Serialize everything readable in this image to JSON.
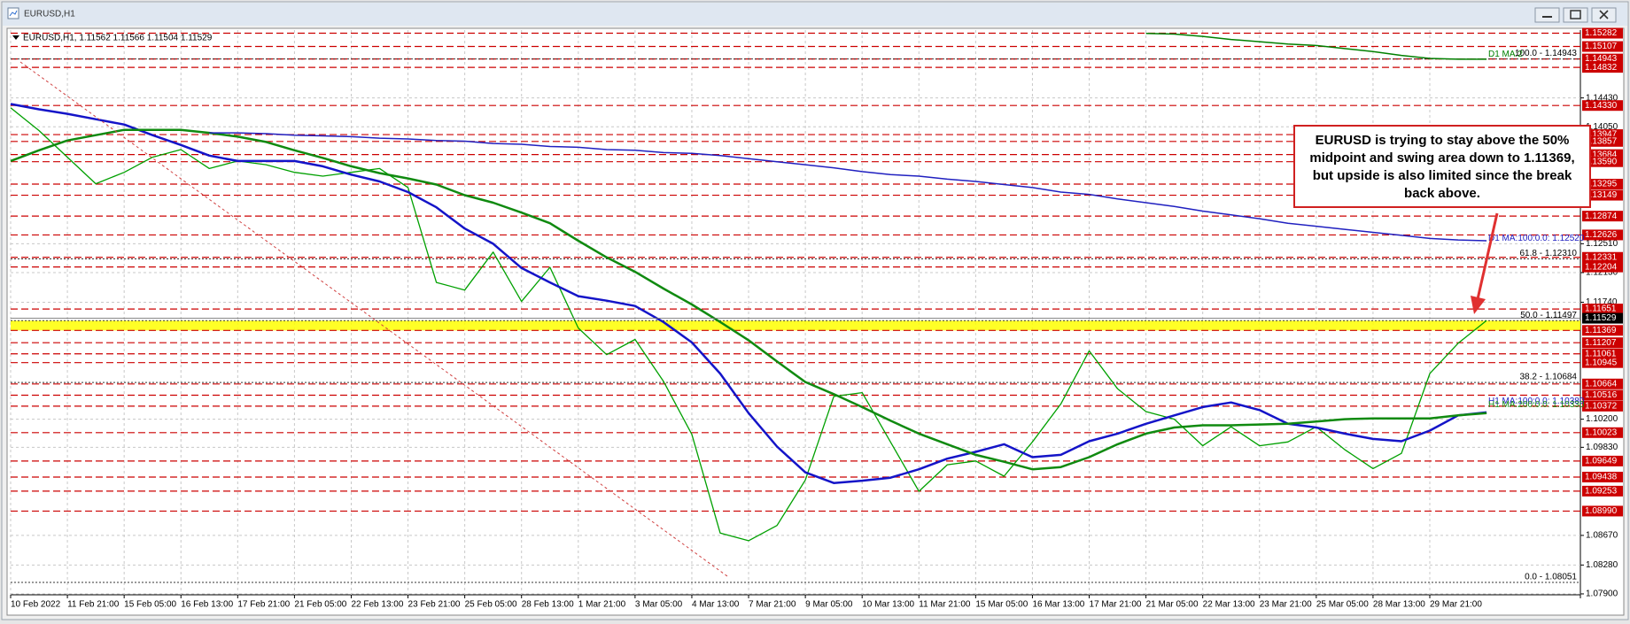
{
  "chart_data": {
    "type": "line",
    "title": "EURUSD,H1",
    "header": "EURUSD,H1, 1.11562 1.11566 1.11504 1.11529",
    "categories": [
      "10 Feb 2022",
      null,
      "11 Feb 21:00",
      null,
      "15 Feb 05:00",
      null,
      "16 Feb 13:00",
      null,
      "17 Feb 21:00",
      null,
      "21 Feb 05:00",
      null,
      "22 Feb 13:00",
      null,
      "23 Feb 21:00",
      null,
      "25 Feb 05:00",
      null,
      "28 Feb 13:00",
      null,
      "1 Mar 21:00",
      null,
      "3 Mar 05:00",
      null,
      "4 Mar 13:00",
      null,
      "7 Mar 21:00",
      null,
      "9 Mar 05:00",
      null,
      "10 Mar 13:00",
      null,
      "11 Mar 21:00",
      null,
      "15 Mar 05:00",
      null,
      "16 Mar 13:00",
      null,
      "17 Mar 21:00",
      null,
      "21 Mar 05:00",
      null,
      "22 Mar 13:00",
      null,
      "23 Mar 21:00",
      null,
      "25 Mar 05:00",
      null,
      "28 Mar 13:00",
      null,
      "29 Mar 21:00",
      null,
      null
    ],
    "series": [
      {
        "color": "#00a000",
        "width": 1.3,
        "values": [
          1.143,
          1.14,
          1.1365,
          1.133,
          1.1345,
          1.1365,
          1.1375,
          1.135,
          1.136,
          1.1355,
          1.1345,
          1.134,
          1.1345,
          1.135,
          1.1325,
          1.12,
          1.119,
          1.124,
          1.1175,
          1.122,
          1.114,
          1.1105,
          1.1125,
          1.107,
          1.1,
          1.087,
          1.086,
          1.088,
          1.094,
          1.105,
          1.1055,
          1.099,
          1.0925,
          1.096,
          1.0965,
          1.0945,
          1.099,
          1.104,
          1.111,
          1.106,
          1.103,
          1.102,
          1.0985,
          1.101,
          1.0985,
          1.099,
          1.101,
          1.098,
          1.0955,
          1.0975,
          1.108,
          1.112,
          1.115
        ]
      },
      {
        "color": "#1414c8",
        "width": 2.5,
        "values": [
          1.1435,
          1.1428,
          1.1422,
          1.1415,
          1.1408,
          1.1394,
          1.1381,
          1.1367,
          1.136,
          1.136,
          1.136,
          1.1353,
          1.1342,
          1.1333,
          1.1319,
          1.1299,
          1.1271,
          1.1251,
          1.1219,
          1.12,
          1.1182,
          1.1176,
          1.1169,
          1.1148,
          1.1121,
          1.108,
          1.1028,
          1.0984,
          1.095,
          1.0936,
          1.0939,
          1.0943,
          1.0954,
          1.0968,
          1.0977,
          1.0987,
          1.097,
          1.0973,
          1.0991,
          1.1001,
          1.1014,
          1.1025,
          1.1036,
          1.1042,
          1.1032,
          1.1014,
          1.1009,
          1.1001,
          1.0994,
          1.0991,
          1.1005,
          1.1025,
          1.1029
        ]
      },
      {
        "color": "#108a10",
        "width": 2.5,
        "values": [
          1.136,
          1.1374,
          1.1387,
          1.1394,
          1.1401,
          1.1401,
          1.1401,
          1.1397,
          1.1392,
          1.1385,
          1.1374,
          1.1364,
          1.1353,
          1.1344,
          1.1337,
          1.1329,
          1.1315,
          1.1305,
          1.1292,
          1.1278,
          1.1255,
          1.1233,
          1.1214,
          1.1192,
          1.1171,
          1.1148,
          1.1124,
          1.1096,
          1.1069,
          1.1053,
          1.1036,
          1.1018,
          1.1001,
          1.0987,
          1.0973,
          1.0964,
          1.0954,
          1.0957,
          1.097,
          1.0987,
          1.1001,
          1.1009,
          1.1012,
          1.1012,
          1.1013,
          1.1014,
          1.1017,
          1.102,
          1.1021,
          1.1021,
          1.1021,
          1.1025,
          1.1028
        ]
      },
      {
        "color": "#2020c0",
        "width": 1.5,
        "values": [
          null,
          null,
          null,
          null,
          null,
          null,
          null,
          1.1397,
          1.1397,
          1.1396,
          1.1394,
          1.1393,
          1.1392,
          1.139,
          1.1389,
          1.1387,
          1.1386,
          1.1383,
          1.1382,
          1.1379,
          1.1378,
          1.1375,
          1.1374,
          1.1371,
          1.137,
          1.1367,
          1.1363,
          1.1359,
          1.1355,
          1.1351,
          1.1346,
          1.1342,
          1.134,
          1.1336,
          1.1333,
          1.1329,
          1.1325,
          1.1319,
          1.1316,
          1.131,
          1.1305,
          1.13,
          1.1294,
          1.1289,
          1.1284,
          1.1278,
          1.1274,
          1.127,
          1.1266,
          1.1262,
          1.1258,
          1.1256,
          1.1255
        ]
      },
      {
        "color": "#008000",
        "width": 1.5,
        "values": [
          null,
          null,
          null,
          null,
          null,
          null,
          null,
          null,
          null,
          null,
          null,
          null,
          null,
          null,
          null,
          null,
          null,
          null,
          null,
          null,
          null,
          null,
          null,
          null,
          null,
          null,
          null,
          null,
          null,
          null,
          null,
          null,
          null,
          null,
          null,
          null,
          null,
          null,
          null,
          null,
          1.1528,
          1.1527,
          1.1524,
          1.152,
          1.1517,
          1.1514,
          1.1512,
          1.1508,
          1.1504,
          1.1499,
          1.1495,
          1.1494,
          1.1494
        ]
      }
    ],
    "ylim": [
      1.07888,
      1.15323
    ],
    "yticks": [
      {
        "value": 1.1443,
        "label": "1.14430"
      },
      {
        "value": 1.1405,
        "label": "1.14050"
      },
      {
        "value": 1.1251,
        "label": "1.12510"
      },
      {
        "value": 1.1213,
        "label": "1.12130"
      },
      {
        "value": 1.1174,
        "label": "1.11740"
      },
      {
        "value": 1.102,
        "label": "1.10200"
      },
      {
        "value": 1.0983,
        "label": "1.09830"
      },
      {
        "value": 1.0867,
        "label": "1.08670"
      },
      {
        "value": 1.0828,
        "label": "1.08280"
      },
      {
        "value": 1.079,
        "label": "1.07900"
      }
    ],
    "grid": true,
    "levels": [
      1.15282,
      1.15107,
      1.14943,
      1.14832,
      {
        "value": 1.1433,
        "label": "1.14330"
      },
      1.13947,
      1.13857,
      1.13684,
      {
        "value": 1.1359,
        "label": "1.13590"
      },
      1.13295,
      1.13149,
      1.12874,
      1.12626,
      1.12331,
      1.12204,
      1.11651,
      1.11369,
      1.11207,
      1.11061,
      1.10945,
      1.10664,
      1.10516,
      1.10372,
      1.10023,
      1.09649,
      1.09438,
      1.09253,
      {
        "value": 1.0899,
        "label": "1.08990"
      }
    ],
    "level_color": "#cc0000",
    "fib_levels": [
      {
        "label": "100.0 - 1.14943",
        "value": 1.14943
      },
      {
        "label": "61.8 - 1.12310",
        "value": 1.1231
      },
      {
        "label": "50.0 - 1.11497",
        "value": 1.11497
      },
      {
        "label": "38.2 - 1.10684",
        "value": 1.10684
      },
      {
        "label": "0.0 - 1.08051",
        "value": 1.08051
      }
    ],
    "band": [
      1.11369,
      1.11497
    ],
    "band_color": "#ffff00",
    "current_price": 1.11529,
    "ma_labels": [
      {
        "text": "D1 MA:2",
        "value": 1.14943,
        "color": "#008000"
      },
      {
        "text": "D1 MA:100:0.0: 1.12520",
        "value": 1.1252,
        "color": "#2020c0"
      },
      {
        "text": "H1 MA:100:0.0: 1.10380",
        "value": 1.1038,
        "color": "#2020c0"
      },
      {
        "text": "H1 MA:200:0.0: 1.10330",
        "value": 1.1033,
        "color": "#108a10"
      }
    ],
    "annotation": {
      "text": "EURUSD is trying to stay above the 50% midpoint and swing area down to 1.11369, but upside is also limited since the break back above.",
      "border": "#d02020"
    }
  }
}
